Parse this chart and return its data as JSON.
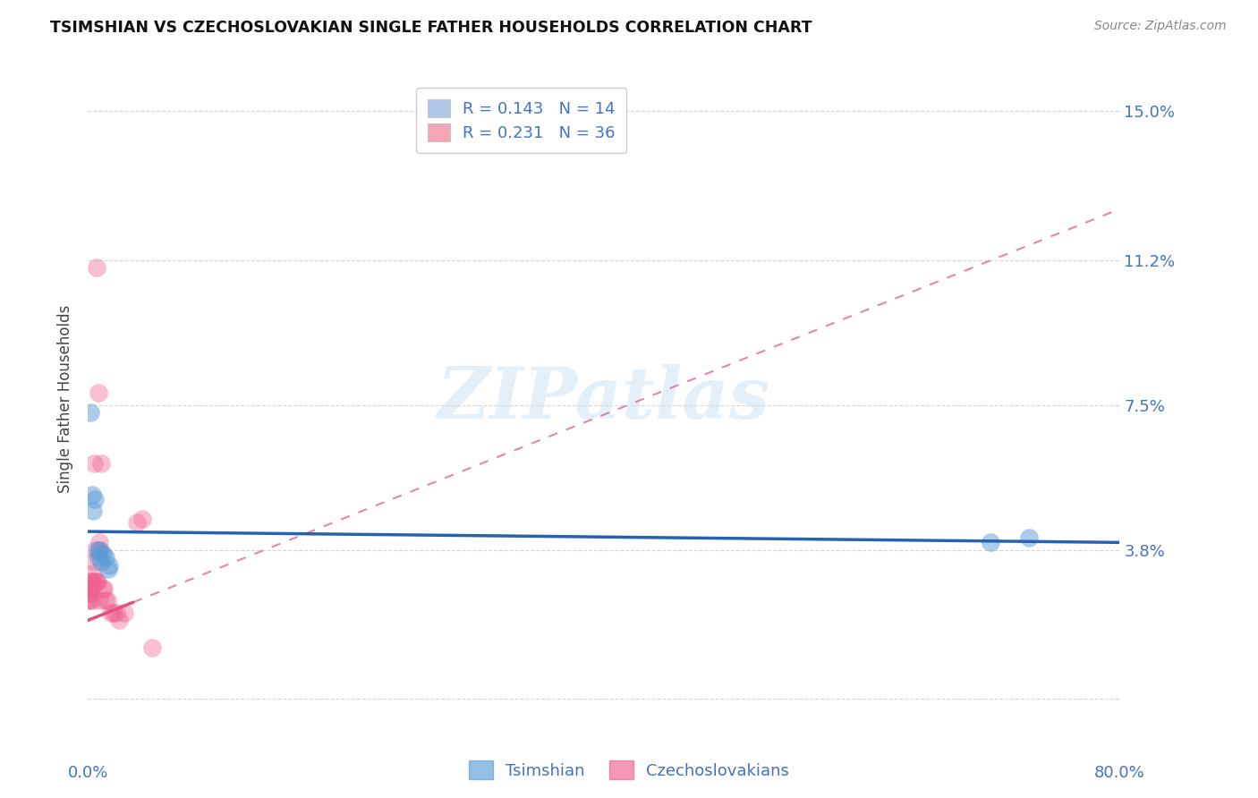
{
  "title": "TSIMSHIAN VS CZECHOSLOVAKIAN SINGLE FATHER HOUSEHOLDS CORRELATION CHART",
  "source": "Source: ZipAtlas.com",
  "ylabel": "Single Father Households",
  "y_ticks": [
    0.0,
    0.038,
    0.075,
    0.112,
    0.15
  ],
  "y_tick_labels": [
    "",
    "3.8%",
    "7.5%",
    "11.2%",
    "15.0%"
  ],
  "x_min": 0.0,
  "x_max": 0.8,
  "y_min": -0.005,
  "y_max": 0.158,
  "legend_entries": [
    {
      "label": "R = 0.143   N = 14",
      "color": "#aec6e8"
    },
    {
      "label": "R = 0.231   N = 36",
      "color": "#f4a6b8"
    }
  ],
  "watermark_text": "ZIPatlas",
  "tsimshian_color": "#5b9bd5",
  "czechoslovakian_color": "#f06090",
  "tsimshian_points": [
    [
      0.002,
      0.073
    ],
    [
      0.0035,
      0.052
    ],
    [
      0.0042,
      0.048
    ],
    [
      0.0055,
      0.051
    ],
    [
      0.007,
      0.038
    ],
    [
      0.008,
      0.036
    ],
    [
      0.009,
      0.038
    ],
    [
      0.01,
      0.035
    ],
    [
      0.0115,
      0.037
    ],
    [
      0.0135,
      0.036
    ],
    [
      0.0155,
      0.033
    ],
    [
      0.0165,
      0.034
    ],
    [
      0.7,
      0.04
    ],
    [
      0.73,
      0.041
    ]
  ],
  "czechoslovakian_points": [
    [
      0.0005,
      0.025
    ],
    [
      0.0008,
      0.028
    ],
    [
      0.001,
      0.027
    ],
    [
      0.0012,
      0.025
    ],
    [
      0.0015,
      0.03
    ],
    [
      0.0018,
      0.027
    ],
    [
      0.002,
      0.028
    ],
    [
      0.0025,
      0.03
    ],
    [
      0.003,
      0.032
    ],
    [
      0.0032,
      0.025
    ],
    [
      0.0035,
      0.028
    ],
    [
      0.004,
      0.03
    ],
    [
      0.0045,
      0.06
    ],
    [
      0.0048,
      0.035
    ],
    [
      0.0055,
      0.038
    ],
    [
      0.006,
      0.03
    ],
    [
      0.0065,
      0.11
    ],
    [
      0.0068,
      0.03
    ],
    [
      0.0072,
      0.03
    ],
    [
      0.008,
      0.078
    ],
    [
      0.0085,
      0.025
    ],
    [
      0.009,
      0.04
    ],
    [
      0.0095,
      0.038
    ],
    [
      0.01,
      0.06
    ],
    [
      0.0115,
      0.028
    ],
    [
      0.0125,
      0.028
    ],
    [
      0.0135,
      0.025
    ],
    [
      0.015,
      0.025
    ],
    [
      0.018,
      0.022
    ],
    [
      0.02,
      0.022
    ],
    [
      0.022,
      0.022
    ],
    [
      0.024,
      0.02
    ],
    [
      0.028,
      0.022
    ],
    [
      0.038,
      0.045
    ],
    [
      0.042,
      0.046
    ],
    [
      0.05,
      0.013
    ]
  ],
  "tsimshian_line_color": "#2563b0",
  "czechoslovakian_line_color": "#e05080",
  "tsimshian_line": [
    0.0,
    0.0345,
    0.8,
    0.0435
  ],
  "czechoslovakian_line_solid": [
    0.0,
    0.02,
    0.035,
    0.05
  ],
  "czechoslovakian_line_full": [
    0.0,
    0.02,
    0.8,
    0.125
  ],
  "grid_color": "#cccccc",
  "background_color": "#ffffff",
  "tick_color": "#4472c4",
  "x_tick_positions": [
    0.0,
    0.2,
    0.4,
    0.6,
    0.8
  ],
  "bottom_legend": [
    "Tsimshian",
    "Czechoslovakians"
  ]
}
